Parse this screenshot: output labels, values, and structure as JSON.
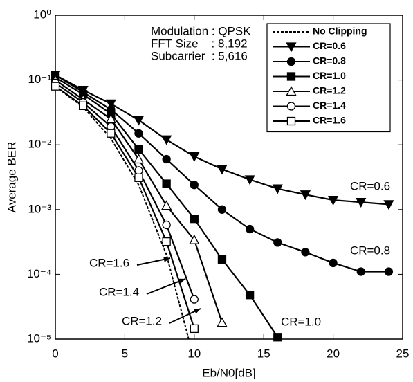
{
  "chart_data": {
    "type": "line",
    "xlabel": "Eb/N0[dB]",
    "ylabel": "Average BER",
    "xlim": [
      0,
      25
    ],
    "xticks": [
      0,
      5,
      10,
      15,
      20,
      25
    ],
    "ylim": [
      1e-05,
      1
    ],
    "ylog": true,
    "yticks": [
      {
        "value": 1,
        "label": "10⁰"
      },
      {
        "value": 0.1,
        "label": "10⁻¹"
      },
      {
        "value": 0.01,
        "label": "10⁻²"
      },
      {
        "value": 0.001,
        "label": "10⁻³"
      },
      {
        "value": 0.0001,
        "label": "10⁻⁴"
      },
      {
        "value": 1e-05,
        "label": "10⁻⁵"
      }
    ],
    "grid": false,
    "legend": "upper right",
    "annotations": [
      "Modulation : QPSK",
      "FFT Size    : 8,192",
      "Subcarrier  : 5,616"
    ],
    "curve_labels": [
      "CR=0.6",
      "CR=0.8",
      "CR=1.0",
      "CR=1.6",
      "CR=1.4",
      "CR=1.2"
    ],
    "series": [
      {
        "name": "No Clipping",
        "color": "#000000",
        "marker": "none",
        "dash": true,
        "x": [
          0,
          2,
          4,
          6,
          8,
          9.6
        ],
        "values": [
          0.08,
          0.038,
          0.0125,
          0.0024,
          0.0002,
          1e-05
        ]
      },
      {
        "name": "CR=0.6",
        "color": "#000000",
        "marker": "triangle-down",
        "dash": false,
        "x": [
          0,
          2,
          4,
          6,
          8,
          10,
          12,
          14,
          16,
          18,
          20,
          22,
          24
        ],
        "values": [
          0.12,
          0.07,
          0.043,
          0.024,
          0.012,
          0.0066,
          0.0042,
          0.0029,
          0.0021,
          0.0017,
          0.0014,
          0.0013,
          0.0012
        ]
      },
      {
        "name": "CR=0.8",
        "color": "#000000",
        "marker": "circle",
        "dash": false,
        "x": [
          0,
          2,
          4,
          6,
          8,
          10,
          12,
          14,
          16,
          18,
          20,
          22,
          24
        ],
        "values": [
          0.12,
          0.065,
          0.035,
          0.015,
          0.006,
          0.0024,
          0.001,
          0.0005,
          0.00031,
          0.00022,
          0.00015,
          0.00011,
          0.00011
        ]
      },
      {
        "name": "CR=1.0",
        "color": "#000000",
        "marker": "square",
        "dash": false,
        "x": [
          0,
          2,
          4,
          6,
          8,
          10,
          12,
          14,
          16
        ],
        "values": [
          0.11,
          0.06,
          0.03,
          0.0085,
          0.0025,
          0.00072,
          0.00017,
          4.8e-05,
          1.07e-05
        ]
      },
      {
        "name": "CR=1.2",
        "color": "#000000",
        "marker": "triangle-up-open",
        "dash": false,
        "x": [
          0,
          2,
          4,
          6,
          8,
          10,
          12
        ],
        "values": [
          0.1,
          0.05,
          0.025,
          0.006,
          0.00115,
          0.00034,
          1.8e-05
        ]
      },
      {
        "name": "CR=1.4",
        "color": "#000000",
        "marker": "circle-open",
        "dash": false,
        "x": [
          0,
          2,
          4,
          6,
          8,
          10
        ],
        "values": [
          0.09,
          0.045,
          0.019,
          0.004,
          0.00058,
          4.1e-05
        ]
      },
      {
        "name": "CR=1.6",
        "color": "#000000",
        "marker": "square-open",
        "dash": false,
        "x": [
          0,
          2,
          4,
          6,
          8,
          10
        ],
        "values": [
          0.08,
          0.04,
          0.015,
          0.0031,
          0.00032,
          1.45e-05
        ]
      }
    ]
  }
}
